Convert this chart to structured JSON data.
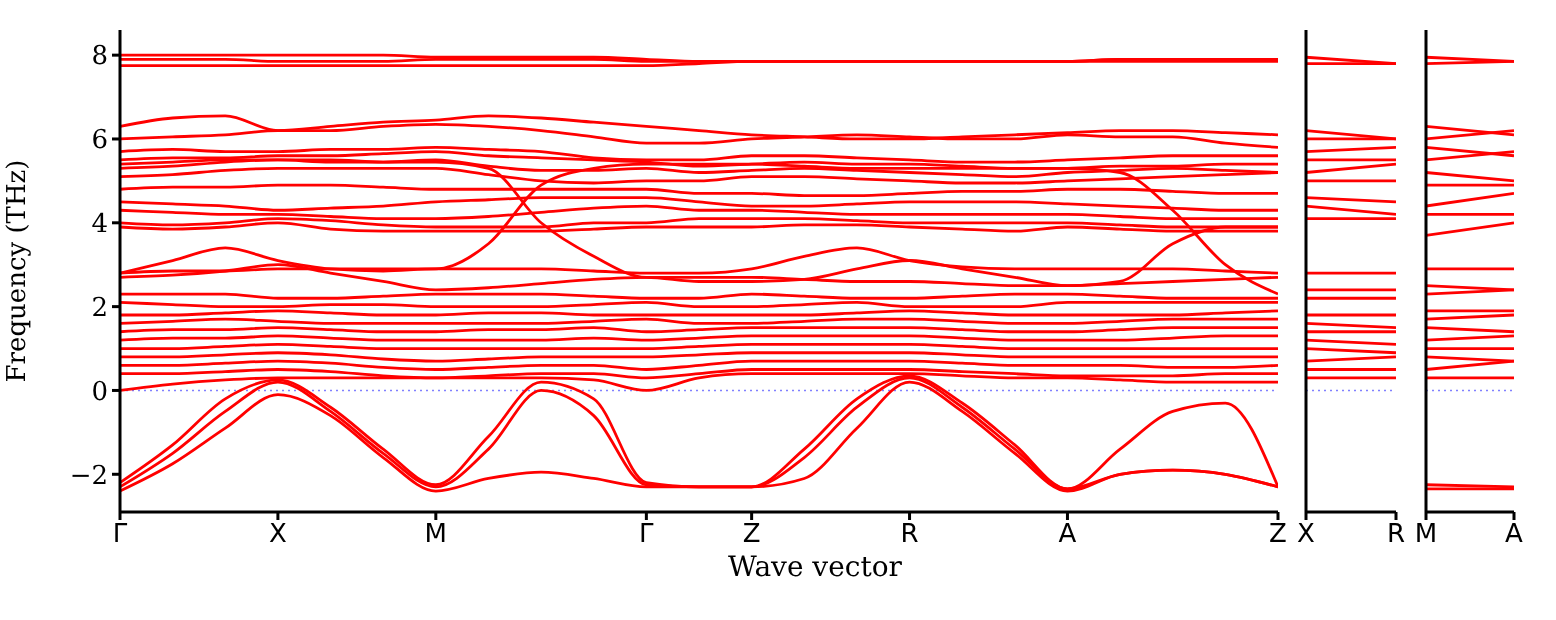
{
  "chart_data": [
    {
      "type": "line",
      "xlabel": "Wave vector",
      "ylabel": "Frequency (THz)",
      "color": "#ff0000",
      "marker": "none",
      "line_style": "solid",
      "categories": [
        "Γ",
        null,
        null,
        "X",
        null,
        null,
        "M",
        null,
        null,
        null,
        "Γ",
        null,
        "Z",
        null,
        null,
        "R",
        null,
        null,
        "A",
        null,
        null,
        null,
        "Z"
      ],
      "ylim": [
        -2.9,
        8.6
      ],
      "yticks": [
        -2,
        0,
        2,
        4,
        6,
        8
      ],
      "ref_lines": [
        {
          "axis": "y",
          "value": 0,
          "color": "#8080ff",
          "line_style": "dotted"
        }
      ],
      "series": [
        {
          "values": [
            8.0,
            8.0,
            8.0,
            8.0,
            8.0,
            8.0,
            7.95,
            7.95,
            7.95,
            7.95,
            7.9,
            7.85,
            7.85,
            7.85,
            7.85,
            7.85,
            7.85,
            7.85,
            7.85,
            7.9,
            7.9,
            7.9,
            7.9
          ]
        },
        {
          "values": [
            7.9,
            7.9,
            7.9,
            7.85,
            7.85,
            7.85,
            7.9,
            7.9,
            7.9,
            7.9,
            7.85,
            7.85,
            7.85,
            7.85,
            7.85,
            7.85,
            7.85,
            7.85,
            7.85,
            7.9,
            7.9,
            7.9,
            7.9
          ]
        },
        {
          "values": [
            7.75,
            7.75,
            7.75,
            7.75,
            7.75,
            7.75,
            7.75,
            7.75,
            7.75,
            7.75,
            7.75,
            7.8,
            7.85,
            7.85,
            7.85,
            7.85,
            7.85,
            7.85,
            7.85,
            7.85,
            7.85,
            7.85,
            7.85
          ]
        },
        {
          "values": [
            6.3,
            6.5,
            6.55,
            6.2,
            6.3,
            6.4,
            6.45,
            6.55,
            6.5,
            6.4,
            6.3,
            6.2,
            6.1,
            6.05,
            6.0,
            6.0,
            6.05,
            6.1,
            6.15,
            6.2,
            6.2,
            6.15,
            6.1
          ]
        },
        {
          "values": [
            6.0,
            6.05,
            6.1,
            6.2,
            6.2,
            6.3,
            6.35,
            6.3,
            6.2,
            6.05,
            5.9,
            5.9,
            6.0,
            6.05,
            6.1,
            6.05,
            6.0,
            6.0,
            6.1,
            6.05,
            6.05,
            5.9,
            5.8
          ]
        },
        {
          "values": [
            5.7,
            5.75,
            5.7,
            5.7,
            5.75,
            5.75,
            5.8,
            5.75,
            5.7,
            5.55,
            5.5,
            5.5,
            5.6,
            5.6,
            5.55,
            5.5,
            5.45,
            5.45,
            5.5,
            5.55,
            5.6,
            5.6,
            5.6
          ]
        },
        {
          "values": [
            5.5,
            5.55,
            5.55,
            5.6,
            5.6,
            5.65,
            5.7,
            5.6,
            5.55,
            5.5,
            5.45,
            5.35,
            5.4,
            5.45,
            5.4,
            5.4,
            5.35,
            5.3,
            5.3,
            5.35,
            5.35,
            5.4,
            5.4
          ]
        },
        {
          "values": [
            5.3,
            5.35,
            5.45,
            5.5,
            5.45,
            5.45,
            5.5,
            5.35,
            5.25,
            5.25,
            5.3,
            5.2,
            5.25,
            5.3,
            5.25,
            5.2,
            5.15,
            5.1,
            5.2,
            5.25,
            5.3,
            5.25,
            5.2
          ]
        },
        {
          "values": [
            5.1,
            5.15,
            5.25,
            5.3,
            5.3,
            5.3,
            5.3,
            5.15,
            5.0,
            4.95,
            5.0,
            5.0,
            5.1,
            5.1,
            5.05,
            5.0,
            4.95,
            4.95,
            5.0,
            5.05,
            5.1,
            5.15,
            5.2
          ]
        },
        {
          "values": [
            4.8,
            4.85,
            4.85,
            4.9,
            4.9,
            4.85,
            4.8,
            4.8,
            4.8,
            4.8,
            4.8,
            4.7,
            4.7,
            4.65,
            4.65,
            4.7,
            4.75,
            4.75,
            4.8,
            4.8,
            4.75,
            4.7,
            4.7
          ]
        },
        {
          "values": [
            4.5,
            4.45,
            4.4,
            4.3,
            4.35,
            4.4,
            4.5,
            4.55,
            4.6,
            4.6,
            4.6,
            4.5,
            4.4,
            4.4,
            4.45,
            4.5,
            4.5,
            4.5,
            4.45,
            4.4,
            4.35,
            4.3,
            4.3
          ]
        },
        {
          "values": [
            4.3,
            4.25,
            4.2,
            4.2,
            4.15,
            4.1,
            4.1,
            4.15,
            4.25,
            4.35,
            4.4,
            4.3,
            4.3,
            4.25,
            4.2,
            4.2,
            4.2,
            4.2,
            4.2,
            4.15,
            4.1,
            4.1,
            4.1
          ]
        },
        {
          "values": [
            4.0,
            3.95,
            4.0,
            4.1,
            4.05,
            3.95,
            3.9,
            3.9,
            3.9,
            4.0,
            4.0,
            4.1,
            4.1,
            4.1,
            4.05,
            4.0,
            4.0,
            4.0,
            4.0,
            3.95,
            3.9,
            3.9,
            3.9
          ]
        },
        {
          "values": [
            3.9,
            3.85,
            3.9,
            4.0,
            3.85,
            3.8,
            3.8,
            3.8,
            3.8,
            3.85,
            3.9,
            3.9,
            3.9,
            3.95,
            3.95,
            3.9,
            3.85,
            3.8,
            3.9,
            3.85,
            3.8,
            3.8,
            3.8
          ]
        },
        {
          "values": [
            2.8,
            2.85,
            2.85,
            2.9,
            2.9,
            2.9,
            2.9,
            3.5,
            4.9,
            5.3,
            5.4,
            5.4,
            5.4,
            5.35,
            5.3,
            5.3,
            5.3,
            5.3,
            5.3,
            5.2,
            4.3,
            3.0,
            2.3
          ]
        },
        {
          "values": [
            5.4,
            5.45,
            5.5,
            5.5,
            5.5,
            5.45,
            5.45,
            5.3,
            4.0,
            3.2,
            2.7,
            2.7,
            2.7,
            2.65,
            2.6,
            2.6,
            2.55,
            2.5,
            2.5,
            2.6,
            3.5,
            3.9,
            3.9
          ]
        },
        {
          "values": [
            2.8,
            3.1,
            3.4,
            3.1,
            2.9,
            2.85,
            2.9,
            2.9,
            2.9,
            2.85,
            2.8,
            2.8,
            2.9,
            3.2,
            3.4,
            3.1,
            2.95,
            2.9,
            2.9,
            2.9,
            2.9,
            2.85,
            2.8
          ]
        },
        {
          "values": [
            2.7,
            2.75,
            2.85,
            3.0,
            2.8,
            2.6,
            2.4,
            2.45,
            2.55,
            2.65,
            2.7,
            2.6,
            2.6,
            2.65,
            2.9,
            3.1,
            2.9,
            2.7,
            2.5,
            2.55,
            2.6,
            2.65,
            2.7
          ]
        },
        {
          "values": [
            2.3,
            2.3,
            2.3,
            2.2,
            2.2,
            2.25,
            2.3,
            2.3,
            2.3,
            2.25,
            2.2,
            2.2,
            2.3,
            2.25,
            2.2,
            2.2,
            2.25,
            2.3,
            2.3,
            2.25,
            2.2,
            2.2,
            2.2
          ]
        },
        {
          "values": [
            2.1,
            2.05,
            2.0,
            2.0,
            2.05,
            2.05,
            2.0,
            2.0,
            2.0,
            2.05,
            2.1,
            2.0,
            2.0,
            2.05,
            2.1,
            2.0,
            2.0,
            2.0,
            2.1,
            2.1,
            2.1,
            2.1,
            2.1
          ]
        },
        {
          "values": [
            1.8,
            1.8,
            1.85,
            1.9,
            1.85,
            1.8,
            1.8,
            1.85,
            1.85,
            1.8,
            1.8,
            1.8,
            1.8,
            1.8,
            1.85,
            1.9,
            1.85,
            1.8,
            1.8,
            1.8,
            1.8,
            1.85,
            1.9
          ]
        },
        {
          "values": [
            1.6,
            1.65,
            1.7,
            1.65,
            1.6,
            1.6,
            1.6,
            1.6,
            1.6,
            1.65,
            1.7,
            1.6,
            1.6,
            1.65,
            1.7,
            1.7,
            1.65,
            1.6,
            1.6,
            1.65,
            1.7,
            1.7,
            1.7
          ]
        },
        {
          "values": [
            1.4,
            1.45,
            1.45,
            1.5,
            1.45,
            1.4,
            1.4,
            1.45,
            1.45,
            1.5,
            1.4,
            1.45,
            1.5,
            1.5,
            1.5,
            1.5,
            1.45,
            1.4,
            1.4,
            1.45,
            1.5,
            1.5,
            1.5
          ]
        },
        {
          "values": [
            1.2,
            1.25,
            1.25,
            1.3,
            1.25,
            1.2,
            1.2,
            1.2,
            1.2,
            1.25,
            1.2,
            1.25,
            1.3,
            1.3,
            1.3,
            1.3,
            1.25,
            1.2,
            1.2,
            1.2,
            1.25,
            1.3,
            1.3
          ]
        },
        {
          "values": [
            1.0,
            1.0,
            1.05,
            1.1,
            1.05,
            1.0,
            1.0,
            1.0,
            1.0,
            1.0,
            1.0,
            1.05,
            1.1,
            1.1,
            1.1,
            1.1,
            1.05,
            1.0,
            1.0,
            1.0,
            1.0,
            1.0,
            1.0
          ]
        },
        {
          "values": [
            0.8,
            0.8,
            0.85,
            0.9,
            0.85,
            0.75,
            0.7,
            0.75,
            0.8,
            0.8,
            0.8,
            0.85,
            0.9,
            0.9,
            0.9,
            0.9,
            0.85,
            0.8,
            0.8,
            0.8,
            0.8,
            0.8,
            0.8
          ]
        },
        {
          "values": [
            0.6,
            0.6,
            0.65,
            0.7,
            0.65,
            0.55,
            0.5,
            0.55,
            0.6,
            0.6,
            0.5,
            0.6,
            0.7,
            0.7,
            0.7,
            0.7,
            0.65,
            0.6,
            0.6,
            0.6,
            0.55,
            0.55,
            0.6
          ]
        },
        {
          "values": [
            0.4,
            0.4,
            0.45,
            0.5,
            0.45,
            0.35,
            0.3,
            0.35,
            0.4,
            0.4,
            0.3,
            0.4,
            0.5,
            0.5,
            0.5,
            0.5,
            0.45,
            0.4,
            0.35,
            0.35,
            0.35,
            0.4,
            0.4
          ]
        },
        {
          "values": [
            0.0,
            0.15,
            0.25,
            0.3,
            0.3,
            0.3,
            0.3,
            0.3,
            0.3,
            0.25,
            0.0,
            0.3,
            0.4,
            0.4,
            0.4,
            0.4,
            0.35,
            0.3,
            0.3,
            0.25,
            0.2,
            0.2,
            0.2
          ]
        },
        {
          "values": [
            -2.4,
            -1.75,
            -0.9,
            -0.1,
            -0.6,
            -1.6,
            -2.4,
            -2.1,
            -1.95,
            -2.1,
            -2.3,
            -2.3,
            -2.3,
            -2.1,
            -0.9,
            0.2,
            -0.5,
            -1.5,
            -2.4,
            -2.0,
            -1.9,
            -2.0,
            -2.3
          ]
        },
        {
          "values": [
            -2.3,
            -1.5,
            -0.5,
            0.2,
            -0.5,
            -1.5,
            -2.3,
            -1.4,
            0.0,
            -0.6,
            -2.25,
            -2.3,
            -2.3,
            -1.6,
            -0.4,
            0.3,
            -0.4,
            -1.4,
            -2.35,
            -1.4,
            -0.5,
            -0.3,
            -2.3
          ]
        },
        {
          "values": [
            -2.2,
            -1.3,
            -0.2,
            0.25,
            -0.4,
            -1.4,
            -2.25,
            -1.1,
            0.2,
            -0.2,
            -2.2,
            -2.3,
            -2.3,
            -1.4,
            -0.2,
            0.35,
            -0.3,
            -1.3,
            -2.35,
            -2.0,
            -1.9,
            -2.0,
            -2.3
          ]
        }
      ]
    },
    {
      "type": "line",
      "color": "#ff0000",
      "marker": "none",
      "line_style": "solid",
      "tick_labels": "x",
      "categories": [
        "X",
        "R"
      ],
      "ylim": [
        -2.9,
        8.6
      ],
      "yticks": [
        -2,
        0,
        2,
        4,
        6,
        8
      ],
      "ref_lines": [
        {
          "axis": "y",
          "value": 0,
          "color": "#8080ff",
          "line_style": "dotted"
        }
      ],
      "series": [
        {
          "values": [
            7.95,
            7.8
          ]
        },
        {
          "values": [
            7.8,
            7.8
          ]
        },
        {
          "values": [
            6.2,
            6.0
          ]
        },
        {
          "values": [
            6.0,
            6.0
          ]
        },
        {
          "values": [
            5.7,
            5.8
          ]
        },
        {
          "values": [
            5.5,
            5.5
          ]
        },
        {
          "values": [
            5.2,
            5.4
          ]
        },
        {
          "values": [
            5.0,
            5.0
          ]
        },
        {
          "values": [
            4.6,
            4.5
          ]
        },
        {
          "values": [
            4.4,
            4.2
          ]
        },
        {
          "values": [
            4.1,
            4.1
          ]
        },
        {
          "values": [
            2.8,
            2.8
          ]
        },
        {
          "values": [
            2.4,
            2.4
          ]
        },
        {
          "values": [
            2.2,
            2.2
          ]
        },
        {
          "values": [
            1.8,
            1.8
          ]
        },
        {
          "values": [
            1.6,
            1.5
          ]
        },
        {
          "values": [
            1.4,
            1.4
          ]
        },
        {
          "values": [
            1.2,
            1.1
          ]
        },
        {
          "values": [
            1.0,
            0.9
          ]
        },
        {
          "values": [
            0.7,
            0.8
          ]
        },
        {
          "values": [
            0.5,
            0.5
          ]
        },
        {
          "values": [
            0.3,
            0.3
          ]
        }
      ]
    },
    {
      "type": "line",
      "color": "#ff0000",
      "marker": "none",
      "line_style": "solid",
      "tick_labels": "x",
      "categories": [
        "M",
        "A"
      ],
      "ylim": [
        -2.9,
        8.6
      ],
      "yticks": [
        -2,
        0,
        2,
        4,
        6,
        8
      ],
      "ref_lines": [
        {
          "axis": "y",
          "value": 0,
          "color": "#8080ff",
          "line_style": "dotted"
        }
      ],
      "series": [
        {
          "values": [
            7.95,
            7.85
          ]
        },
        {
          "values": [
            7.8,
            7.85
          ]
        },
        {
          "values": [
            6.3,
            6.1
          ]
        },
        {
          "values": [
            6.0,
            6.2
          ]
        },
        {
          "values": [
            5.8,
            5.6
          ]
        },
        {
          "values": [
            5.5,
            5.7
          ]
        },
        {
          "values": [
            5.2,
            5.0
          ]
        },
        {
          "values": [
            4.9,
            4.9
          ]
        },
        {
          "values": [
            4.4,
            4.7
          ]
        },
        {
          "values": [
            4.2,
            4.2
          ]
        },
        {
          "values": [
            3.7,
            4.0
          ]
        },
        {
          "values": [
            2.9,
            2.9
          ]
        },
        {
          "values": [
            2.5,
            2.4
          ]
        },
        {
          "values": [
            2.3,
            2.4
          ]
        },
        {
          "values": [
            1.9,
            1.9
          ]
        },
        {
          "values": [
            1.7,
            1.8
          ]
        },
        {
          "values": [
            1.5,
            1.4
          ]
        },
        {
          "values": [
            1.2,
            1.3
          ]
        },
        {
          "values": [
            1.0,
            1.0
          ]
        },
        {
          "values": [
            0.8,
            0.7
          ]
        },
        {
          "values": [
            0.5,
            0.7
          ]
        },
        {
          "values": [
            0.3,
            0.3
          ]
        },
        {
          "values": [
            -2.25,
            -2.3
          ]
        },
        {
          "values": [
            -2.35,
            -2.35
          ]
        }
      ]
    }
  ]
}
